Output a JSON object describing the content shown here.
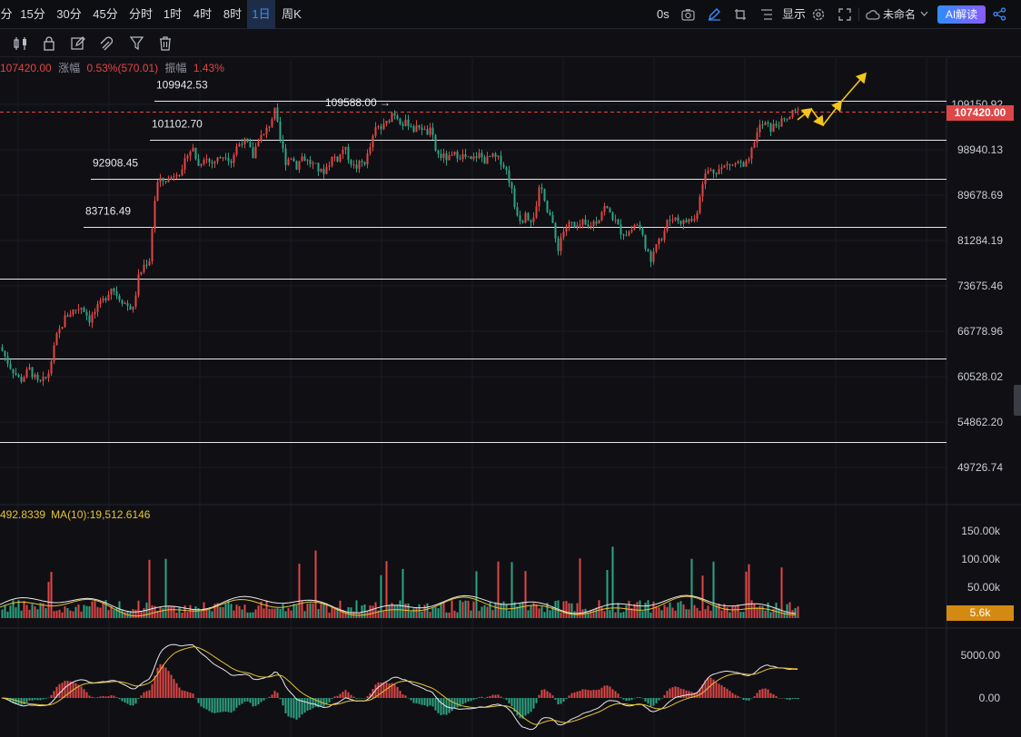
{
  "timeframes": [
    "分",
    "15分",
    "30分",
    "45分",
    "分时",
    "1时",
    "4时",
    "8时",
    "1日",
    "周K"
  ],
  "active_timeframe": "1日",
  "topbar": {
    "countdown": "0s",
    "display_label": "显示",
    "layout_name": "未命名",
    "ai_label": "AI解读"
  },
  "icons": [
    "camera-icon",
    "pen-icon",
    "crop-icon",
    "list-icon",
    "gear-icon",
    "fullscreen-icon",
    "cloud-icon",
    "chevron-down-icon",
    "share-icon",
    "candles-icon",
    "lock-icon",
    "edit-icon",
    "magnet-icon",
    "filter-icon",
    "trash-icon"
  ],
  "info": {
    "price": "107420.00",
    "change_label": "涨幅",
    "change_value": "0.53%(570.01)",
    "amp_label": "振幅",
    "amp_value": "1.43%"
  },
  "volume_legend": {
    "prefix": "492.8339",
    "ma_text": "MA(10):19,512.6146"
  },
  "colors": {
    "up": "#e04646",
    "down": "#2ea383",
    "ma_yellow": "#e6c234",
    "accent": "#3d8bff",
    "annotation": "#f5c518"
  },
  "chart_data": {
    "type": "candlestick",
    "price_axis": [
      "109150.92",
      "98940.13",
      "89678.69",
      "81284.19",
      "73675.46",
      "66778.96",
      "60528.02",
      "54862.20",
      "49726.74"
    ],
    "price_scale": "log",
    "last_price": "107420.00",
    "levels": [
      {
        "label": "109942.53",
        "value": 109942.53
      },
      {
        "label": "101102.70",
        "value": 101102.7
      },
      {
        "label": "92908.45",
        "value": 92908.45
      },
      {
        "label": "83716.49",
        "value": 83716.49
      },
      {
        "value": 74800
      },
      {
        "value": 63000
      },
      {
        "value": 52500
      }
    ],
    "high_marker": "109588.00 →",
    "volume_axis": [
      "150.00k",
      "100.00k",
      "50.00k"
    ],
    "volume_last": "5.6k",
    "macd_axis": [
      "5000.00",
      "0.00"
    ],
    "path_anchors": [
      [
        0,
        64500
      ],
      [
        10,
        62000
      ],
      [
        22,
        60000
      ],
      [
        32,
        61500
      ],
      [
        42,
        59500
      ],
      [
        52,
        60500
      ],
      [
        62,
        66000
      ],
      [
        72,
        69000
      ],
      [
        82,
        70000
      ],
      [
        90,
        70500
      ],
      [
        98,
        68500
      ],
      [
        106,
        70000
      ],
      [
        114,
        71500
      ],
      [
        122,
        73500
      ],
      [
        130,
        72000
      ],
      [
        138,
        70800
      ],
      [
        146,
        70000
      ],
      [
        152,
        75000
      ],
      [
        158,
        77000
      ],
      [
        164,
        78000
      ],
      [
        168,
        85500
      ],
      [
        172,
        92000
      ],
      [
        178,
        92500
      ],
      [
        186,
        92800
      ],
      [
        194,
        94500
      ],
      [
        200,
        94000
      ],
      [
        206,
        98500
      ],
      [
        212,
        99000
      ],
      [
        218,
        95500
      ],
      [
        224,
        97500
      ],
      [
        232,
        96000
      ],
      [
        240,
        97000
      ],
      [
        248,
        98000
      ],
      [
        254,
        96500
      ],
      [
        260,
        99500
      ],
      [
        266,
        101000
      ],
      [
        272,
        100000
      ],
      [
        278,
        97500
      ],
      [
        284,
        101500
      ],
      [
        290,
        102000
      ],
      [
        296,
        104500
      ],
      [
        302,
        107500
      ],
      [
        308,
        101000
      ],
      [
        314,
        96500
      ],
      [
        320,
        97500
      ],
      [
        326,
        95500
      ],
      [
        332,
        97500
      ],
      [
        338,
        96500
      ],
      [
        346,
        95500
      ],
      [
        354,
        94000
      ],
      [
        360,
        95500
      ],
      [
        366,
        97500
      ],
      [
        372,
        97000
      ],
      [
        378,
        99500
      ],
      [
        384,
        97000
      ],
      [
        390,
        95000
      ],
      [
        396,
        96000
      ],
      [
        402,
        96500
      ],
      [
        408,
        100000
      ],
      [
        414,
        104000
      ],
      [
        420,
        103500
      ],
      [
        426,
        105000
      ],
      [
        432,
        107500
      ],
      [
        438,
        106000
      ],
      [
        444,
        104500
      ],
      [
        450,
        105000
      ],
      [
        456,
        103000
      ],
      [
        462,
        104500
      ],
      [
        468,
        102500
      ],
      [
        474,
        103000
      ],
      [
        480,
        98000
      ],
      [
        486,
        97500
      ],
      [
        494,
        97000
      ],
      [
        502,
        98000
      ],
      [
        510,
        97500
      ],
      [
        518,
        96500
      ],
      [
        526,
        98000
      ],
      [
        534,
        96500
      ],
      [
        540,
        97500
      ],
      [
        546,
        97000
      ],
      [
        552,
        96500
      ],
      [
        558,
        94000
      ],
      [
        562,
        91500
      ],
      [
        566,
        87500
      ],
      [
        570,
        86000
      ],
      [
        574,
        84500
      ],
      [
        578,
        87000
      ],
      [
        582,
        85000
      ],
      [
        586,
        85500
      ],
      [
        590,
        87000
      ],
      [
        594,
        91500
      ],
      [
        598,
        90000
      ],
      [
        602,
        87000
      ],
      [
        606,
        85500
      ],
      [
        610,
        82000
      ],
      [
        614,
        80000
      ],
      [
        618,
        82500
      ],
      [
        622,
        83500
      ],
      [
        628,
        84500
      ],
      [
        634,
        83000
      ],
      [
        640,
        84500
      ],
      [
        646,
        83500
      ],
      [
        652,
        84500
      ],
      [
        658,
        85000
      ],
      [
        664,
        87500
      ],
      [
        670,
        86500
      ],
      [
        676,
        85000
      ],
      [
        682,
        83000
      ],
      [
        688,
        82500
      ],
      [
        694,
        83000
      ],
      [
        700,
        84500
      ],
      [
        706,
        82500
      ],
      [
        712,
        79500
      ],
      [
        716,
        77000
      ],
      [
        720,
        80500
      ],
      [
        724,
        82000
      ],
      [
        728,
        81500
      ],
      [
        734,
        84500
      ],
      [
        740,
        85500
      ],
      [
        746,
        85000
      ],
      [
        752,
        84500
      ],
      [
        758,
        85000
      ],
      [
        764,
        85000
      ],
      [
        768,
        87500
      ],
      [
        772,
        92000
      ],
      [
        778,
        94500
      ],
      [
        786,
        94500
      ],
      [
        794,
        95000
      ],
      [
        802,
        96000
      ],
      [
        808,
        95500
      ],
      [
        812,
        96500
      ],
      [
        818,
        95000
      ],
      [
        824,
        96500
      ],
      [
        830,
        101000
      ],
      [
        836,
        104000
      ],
      [
        842,
        104500
      ],
      [
        848,
        103500
      ],
      [
        854,
        104500
      ],
      [
        860,
        105000
      ],
      [
        866,
        105500
      ],
      [
        872,
        107000
      ],
      [
        878,
        107400
      ]
    ],
    "annotation_arrows": [
      [
        [
          878,
          132
        ],
        [
          893,
          120
        ]
      ],
      [
        [
          893,
          120
        ],
        [
          906,
          138
        ]
      ],
      [
        [
          906,
          138
        ],
        [
          926,
          112
        ]
      ],
      [
        [
          926,
          112
        ],
        [
          953,
          81
        ]
      ]
    ]
  }
}
